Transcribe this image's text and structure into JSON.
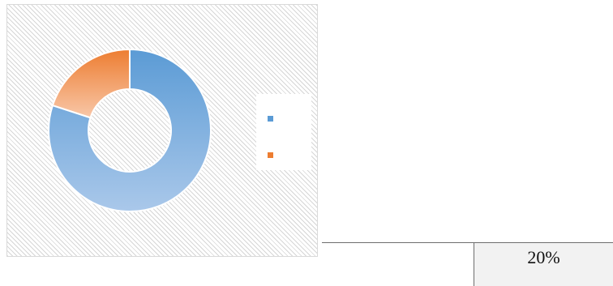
{
  "chart_data": {
    "type": "pie",
    "donut": true,
    "title": "",
    "slices": [
      {
        "name": "",
        "value": 80,
        "color_light": "#aac8ea",
        "color_dark": "#5b9bd5"
      },
      {
        "name": "",
        "value": 20,
        "color_light": "#f8c7a8",
        "color_dark": "#ed7d31"
      }
    ],
    "legend": {
      "placement": "right",
      "labels_visible": false
    }
  },
  "table_fragment": {
    "cells": [
      "",
      "20%"
    ]
  }
}
